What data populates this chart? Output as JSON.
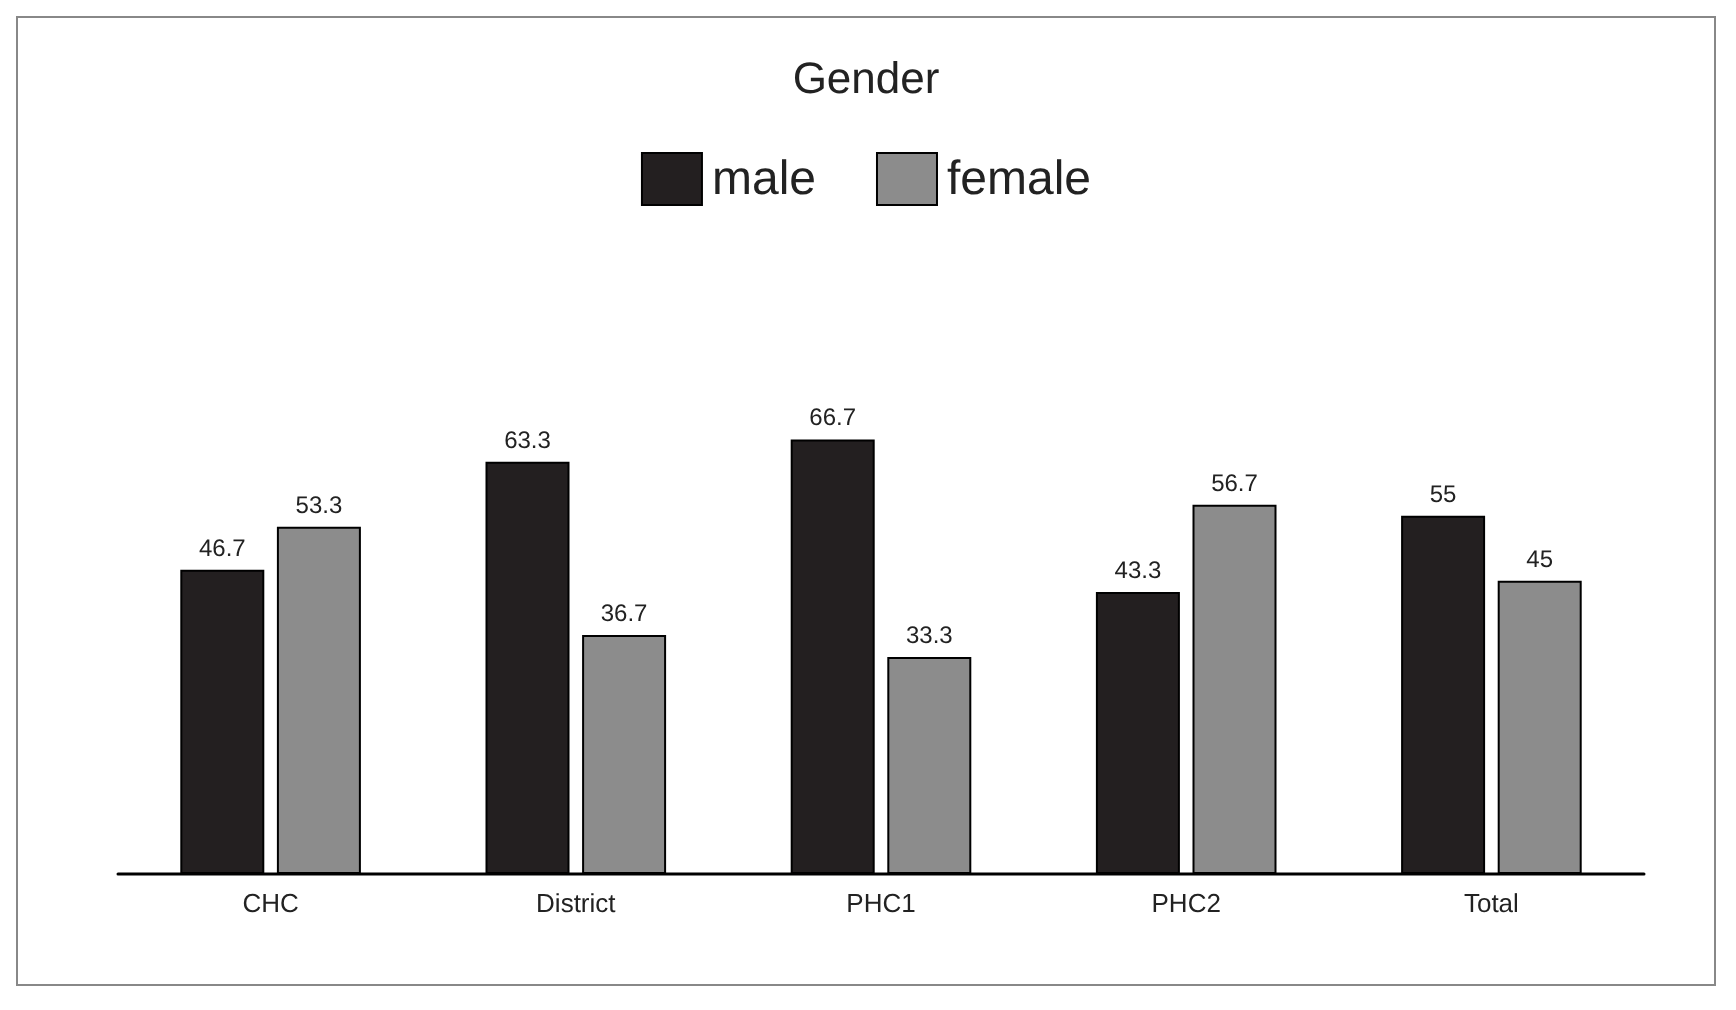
{
  "chart_data": {
    "type": "bar",
    "title": "Gender",
    "categories": [
      "CHC",
      "District",
      "PHC1",
      "PHC2",
      "Total"
    ],
    "series": [
      {
        "name": "male",
        "color": "#231f20",
        "values": [
          46.7,
          63.3,
          66.7,
          43.3,
          55
        ]
      },
      {
        "name": "female",
        "color": "#8c8c8c",
        "values": [
          53.3,
          36.7,
          33.3,
          56.7,
          45
        ]
      }
    ],
    "data_labels": true,
    "legend": "top"
  }
}
